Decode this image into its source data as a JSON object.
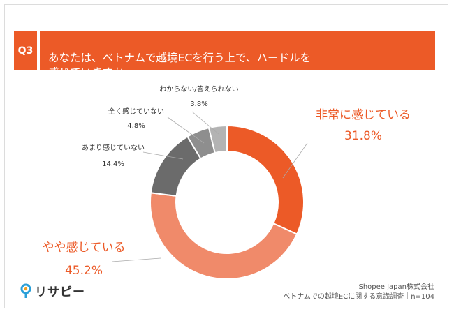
{
  "question": {
    "badge": "Q3",
    "text": "あなたは、ベトナムで越境ECを行う上で、ハードルを\n感じていますか。"
  },
  "chart_data": {
    "type": "pie",
    "donut": true,
    "slices": [
      {
        "label": "非常に感じている",
        "value": 31.8,
        "display": "31.8%",
        "color": "#ec5a27"
      },
      {
        "label": "やや感じている",
        "value": 45.2,
        "display": "45.2%",
        "color": "#f08a6a"
      },
      {
        "label": "あまり感じていない",
        "value": 14.4,
        "display": "14.4%",
        "color": "#6b6b6b"
      },
      {
        "label": "全く感じていない",
        "value": 4.8,
        "display": "4.8%",
        "color": "#8e8e8e"
      },
      {
        "label": "わからない/答えられない",
        "value": 3.8,
        "display": "3.8%",
        "color": "#b3b3b3"
      }
    ]
  },
  "footer": {
    "company": "Shopee Japan株式会社",
    "survey": "ベトナムでの越境ECに関する意識調査｜n=104"
  },
  "logo": {
    "text": "リサピー"
  }
}
